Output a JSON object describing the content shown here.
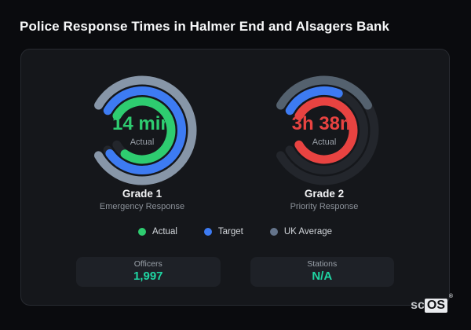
{
  "page": {
    "title": "Police Response Times in Halmer End and Alsagers Bank"
  },
  "chart_data": {
    "type": "radial-gauge-pair",
    "geometry": {
      "start_angle": -150,
      "total_sweep": 300,
      "radii": [
        64,
        50.5,
        37
      ],
      "stroke_width": 11,
      "track_color": "#23262c"
    },
    "gauges": [
      {
        "title": "Grade 1",
        "subtitle": "Emergency Response",
        "center_value": "14 min",
        "center_label": "Actual",
        "value_color": "#2ecc70",
        "rings": [
          {
            "series": "UK Average",
            "fraction": 1.0,
            "color": "#8796a8"
          },
          {
            "series": "Target",
            "fraction": 0.98,
            "color": "#3d7bf2"
          },
          {
            "series": "Actual",
            "fraction": 0.92,
            "color": "#2ecc70"
          }
        ]
      },
      {
        "title": "Grade 2",
        "subtitle": "Priority Response",
        "center_value": "3h 38m",
        "center_label": "Actual",
        "value_color": "#e84341",
        "rings": [
          {
            "series": "UK Average",
            "fraction": 0.4,
            "color": "#54616e"
          },
          {
            "series": "Target",
            "fraction": 0.27,
            "color": "#3d7bf2"
          },
          {
            "series": "Actual",
            "fraction": 1.0,
            "color": "#e84341"
          }
        ]
      }
    ]
  },
  "legend": [
    {
      "label": "Actual",
      "color": "#2ecc70"
    },
    {
      "label": "Target",
      "color": "#3d7bf2"
    },
    {
      "label": "UK Average",
      "color": "#64748b"
    }
  ],
  "stats": [
    {
      "label": "Officers",
      "value": "1,997"
    },
    {
      "label": "Stations",
      "value": "N/A"
    }
  ],
  "logo": {
    "prefix": "sc",
    "suffix": "OS",
    "registered": "®"
  }
}
